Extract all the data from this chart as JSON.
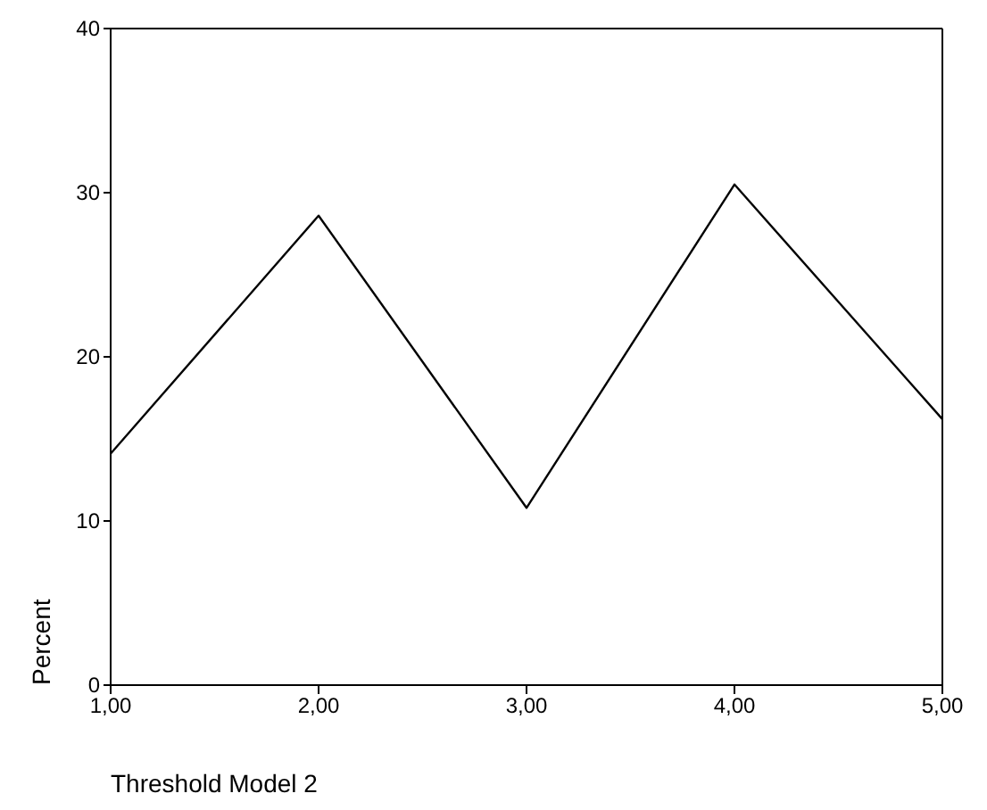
{
  "chart_data": {
    "type": "line",
    "xlabel": "Threshold Model 2",
    "ylabel": "Percent",
    "x": [
      1,
      2,
      3,
      4,
      5
    ],
    "series": [
      {
        "color": "#000000",
        "values": [
          14.1,
          28.6,
          10.8,
          30.5,
          16.2
        ]
      }
    ],
    "xlim": [
      1,
      5
    ],
    "xticks": [
      {
        "value": 1,
        "label": "1,00"
      },
      {
        "value": 2,
        "label": "2,00"
      },
      {
        "value": 3,
        "label": "3,00"
      },
      {
        "value": 4,
        "label": "4,00"
      },
      {
        "value": 5,
        "label": "5,00"
      }
    ],
    "ylim": [
      0,
      40
    ],
    "yticks": [
      0,
      10,
      20,
      30,
      40
    ],
    "grid": false,
    "marker": "none",
    "line_style": "solid"
  }
}
